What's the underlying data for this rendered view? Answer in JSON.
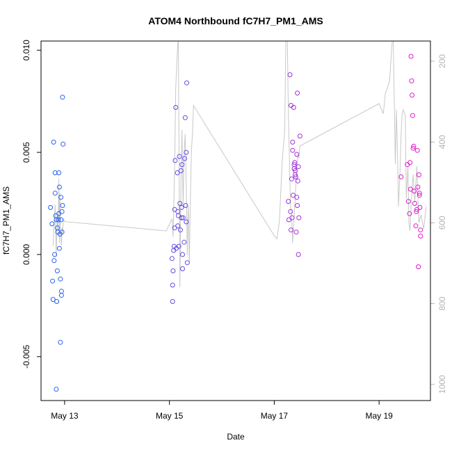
{
  "chart_data": {
    "type": "scatter",
    "title": "ATOM4 Northbound fC7H7_PM1_AMS",
    "xlabel": "Date",
    "ylabel": "fC7H7_PM1_AMS",
    "x_unit": "days since May 12 00:00",
    "xlim": [
      0.55,
      7.98
    ],
    "ylim": [
      -0.00715,
      0.01045
    ],
    "y2lim": [
      1040,
      150
    ],
    "x_ticks": [
      {
        "value": 1,
        "label": "May 13"
      },
      {
        "value": 3,
        "label": "May 15"
      },
      {
        "value": 5,
        "label": "May 17"
      },
      {
        "value": 7,
        "label": "May 19"
      }
    ],
    "y_ticks": [
      {
        "value": -0.005,
        "label": "-0.005"
      },
      {
        "value": 0.0,
        "label": "0.000"
      },
      {
        "value": 0.005,
        "label": "0.005"
      },
      {
        "value": 0.01,
        "label": "0.010"
      }
    ],
    "y2_ticks": [
      {
        "value": 200,
        "label": "200"
      },
      {
        "value": 400,
        "label": "400"
      },
      {
        "value": 600,
        "label": "600"
      },
      {
        "value": 800,
        "label": "800"
      },
      {
        "value": 1000,
        "label": "1000"
      }
    ],
    "series": [
      {
        "name": "fC7H7_PM1_AMS",
        "marker": "open-circle",
        "color_start": "#1e64f0",
        "color_end": "#e614c8",
        "points": [
          [
            0.73,
            0.0023
          ],
          [
            0.76,
            0.0015
          ],
          [
            0.77,
            -0.0013
          ],
          [
            0.78,
            -0.0022
          ],
          [
            0.79,
            0.0055
          ],
          [
            0.8,
            -0.0003
          ],
          [
            0.81,
            0.0
          ],
          [
            0.82,
            0.004
          ],
          [
            0.82,
            0.003
          ],
          [
            0.83,
            0.0019
          ],
          [
            0.84,
            0.0017
          ],
          [
            0.85,
            -0.0023
          ],
          [
            0.86,
            0.0013
          ],
          [
            0.86,
            -0.0008
          ],
          [
            0.87,
            0.0011
          ],
          [
            0.88,
            0.0017
          ],
          [
            0.89,
            0.004
          ],
          [
            0.89,
            0.002
          ],
          [
            0.9,
            0.0033
          ],
          [
            0.9,
            0.0003
          ],
          [
            0.91,
            0.001
          ],
          [
            0.92,
            -0.0012
          ],
          [
            0.92,
            -0.0043
          ],
          [
            0.93,
            0.0028
          ],
          [
            0.93,
            0.0017
          ],
          [
            0.94,
            -0.0018
          ],
          [
            0.94,
            -0.002
          ],
          [
            0.95,
            0.0011
          ],
          [
            0.95,
            0.0021
          ],
          [
            0.96,
            0.0024
          ],
          [
            0.96,
            0.0077
          ],
          [
            0.97,
            0.0054
          ],
          [
            0.84,
            -0.0066
          ],
          [
            3.05,
            -0.0002
          ],
          [
            3.06,
            -0.0023
          ],
          [
            3.06,
            -0.0015
          ],
          [
            3.07,
            -0.0008
          ],
          [
            3.08,
            0.0002
          ],
          [
            3.09,
            0.0004
          ],
          [
            3.1,
            0.0013
          ],
          [
            3.1,
            0.0022
          ],
          [
            3.11,
            0.0046
          ],
          [
            3.12,
            0.0072
          ],
          [
            3.13,
            0.0003
          ],
          [
            3.15,
            0.004
          ],
          [
            3.16,
            0.0021
          ],
          [
            3.16,
            0.0014
          ],
          [
            3.17,
            0.0019
          ],
          [
            3.18,
            0.0004
          ],
          [
            3.19,
            0.0048
          ],
          [
            3.2,
            0.0025
          ],
          [
            3.21,
            0.0012
          ],
          [
            3.22,
            0.0041
          ],
          [
            3.23,
            0.0023
          ],
          [
            3.23,
            0.0018
          ],
          [
            3.24,
            0.0044
          ],
          [
            3.25,
            0.0
          ],
          [
            3.25,
            -0.0007
          ],
          [
            3.26,
            0.0018
          ],
          [
            3.28,
            0.0006
          ],
          [
            3.29,
            0.0047
          ],
          [
            3.3,
            0.0067
          ],
          [
            3.31,
            0.0024
          ],
          [
            3.32,
            0.005
          ],
          [
            3.32,
            0.0016
          ],
          [
            3.33,
            0.0084
          ],
          [
            3.34,
            -0.0004
          ],
          [
            5.27,
            0.0026
          ],
          [
            5.28,
            0.0017
          ],
          [
            5.3,
            0.0088
          ],
          [
            5.31,
            0.0021
          ],
          [
            5.32,
            0.0012
          ],
          [
            5.32,
            0.0073
          ],
          [
            5.33,
            0.0037
          ],
          [
            5.34,
            0.0018
          ],
          [
            5.35,
            0.0051
          ],
          [
            5.35,
            0.0055
          ],
          [
            5.36,
            0.0029
          ],
          [
            5.37,
            0.0072
          ],
          [
            5.38,
            0.0042
          ],
          [
            5.38,
            0.0044
          ],
          [
            5.39,
            0.0045
          ],
          [
            5.4,
            0.0041
          ],
          [
            5.4,
            0.0039
          ],
          [
            5.41,
            0.0038
          ],
          [
            5.42,
            0.0011
          ],
          [
            5.43,
            0.0049
          ],
          [
            5.43,
            0.0028
          ],
          [
            5.44,
            0.0079
          ],
          [
            5.44,
            0.0024
          ],
          [
            5.45,
            0.0036
          ],
          [
            5.46,
            0.0
          ],
          [
            5.46,
            0.0043
          ],
          [
            5.47,
            0.0018
          ],
          [
            5.49,
            0.0058
          ],
          [
            7.42,
            0.0038
          ],
          [
            7.54,
            0.0044
          ],
          [
            7.56,
            0.0026
          ],
          [
            7.58,
            0.002
          ],
          [
            7.59,
            0.0045
          ],
          [
            7.6,
            0.0032
          ],
          [
            7.61,
            0.0097
          ],
          [
            7.62,
            0.0085
          ],
          [
            7.63,
            0.0078
          ],
          [
            7.64,
            0.0068
          ],
          [
            7.65,
            0.0052
          ],
          [
            7.66,
            0.0053
          ],
          [
            7.67,
            0.0031
          ],
          [
            7.68,
            0.0025
          ],
          [
            7.7,
            0.0014
          ],
          [
            7.71,
            0.0021
          ],
          [
            7.72,
            0.0022
          ],
          [
            7.73,
            0.0051
          ],
          [
            7.74,
            0.0033
          ],
          [
            7.75,
            -0.0006
          ],
          [
            7.76,
            0.0039
          ],
          [
            7.77,
            0.0029
          ],
          [
            7.77,
            0.003
          ],
          [
            7.78,
            0.0023
          ],
          [
            7.79,
            0.0012
          ],
          [
            7.79,
            0.0009
          ]
        ]
      },
      {
        "name": "secondary trace (right axis)",
        "color": "#c8c8c8",
        "points": [
          [
            0.78,
            657
          ],
          [
            0.82,
            555
          ],
          [
            0.84,
            683
          ],
          [
            0.85,
            620
          ],
          [
            0.86,
            583
          ],
          [
            0.87,
            620
          ],
          [
            0.88,
            583
          ],
          [
            0.89,
            490
          ],
          [
            0.9,
            650
          ],
          [
            0.91,
            527
          ],
          [
            0.92,
            617
          ],
          [
            0.94,
            657
          ],
          [
            0.95,
            612
          ],
          [
            0.96,
            625
          ],
          [
            0.98,
            590
          ],
          [
            1.0,
            597
          ],
          [
            2.94,
            620
          ],
          [
            3.05,
            590
          ],
          [
            3.07,
            635
          ],
          [
            3.08,
            580
          ],
          [
            3.1,
            455
          ],
          [
            3.12,
            265
          ],
          [
            3.14,
            210
          ],
          [
            3.16,
            155
          ],
          [
            3.17,
            150
          ],
          [
            3.18,
            360
          ],
          [
            3.2,
            760
          ],
          [
            3.22,
            510
          ],
          [
            3.24,
            370
          ],
          [
            3.26,
            560
          ],
          [
            3.28,
            430
          ],
          [
            3.3,
            380
          ],
          [
            3.32,
            500
          ],
          [
            3.34,
            680
          ],
          [
            3.35,
            610
          ],
          [
            3.36,
            560
          ],
          [
            3.38,
            700
          ],
          [
            3.4,
            540
          ],
          [
            3.42,
            420
          ],
          [
            3.44,
            380
          ],
          [
            3.46,
            310
          ],
          [
            5.0,
            632
          ],
          [
            5.05,
            640
          ],
          [
            5.1,
            595
          ],
          [
            5.15,
            450
          ],
          [
            5.2,
            370
          ],
          [
            5.22,
            150
          ],
          [
            5.25,
            150
          ],
          [
            5.27,
            330
          ],
          [
            5.29,
            450
          ],
          [
            5.31,
            560
          ],
          [
            5.33,
            580
          ],
          [
            5.35,
            650
          ],
          [
            5.37,
            600
          ],
          [
            5.39,
            560
          ],
          [
            5.41,
            510
          ],
          [
            5.43,
            470
          ],
          [
            5.45,
            430
          ],
          [
            5.47,
            440
          ],
          [
            5.49,
            410
          ],
          [
            7.0,
            305
          ],
          [
            7.08,
            330
          ],
          [
            7.12,
            280
          ],
          [
            7.2,
            250
          ],
          [
            7.25,
            150
          ],
          [
            7.27,
            150
          ],
          [
            7.29,
            300
          ],
          [
            7.31,
            455
          ],
          [
            7.33,
            320
          ],
          [
            7.35,
            420
          ],
          [
            7.37,
            560
          ],
          [
            7.4,
            470
          ],
          [
            7.42,
            380
          ],
          [
            7.44,
            330
          ],
          [
            7.46,
            320
          ],
          [
            7.5,
            335
          ],
          [
            7.52,
            540
          ],
          [
            7.55,
            460
          ],
          [
            7.57,
            600
          ],
          [
            7.59,
            620
          ],
          [
            7.62,
            530
          ],
          [
            7.65,
            480
          ],
          [
            7.68,
            550
          ],
          [
            7.72,
            460
          ],
          [
            7.76,
            600
          ],
          [
            7.8,
            580
          ],
          [
            7.85,
            615
          ],
          [
            7.9,
            560
          ]
        ]
      }
    ]
  }
}
